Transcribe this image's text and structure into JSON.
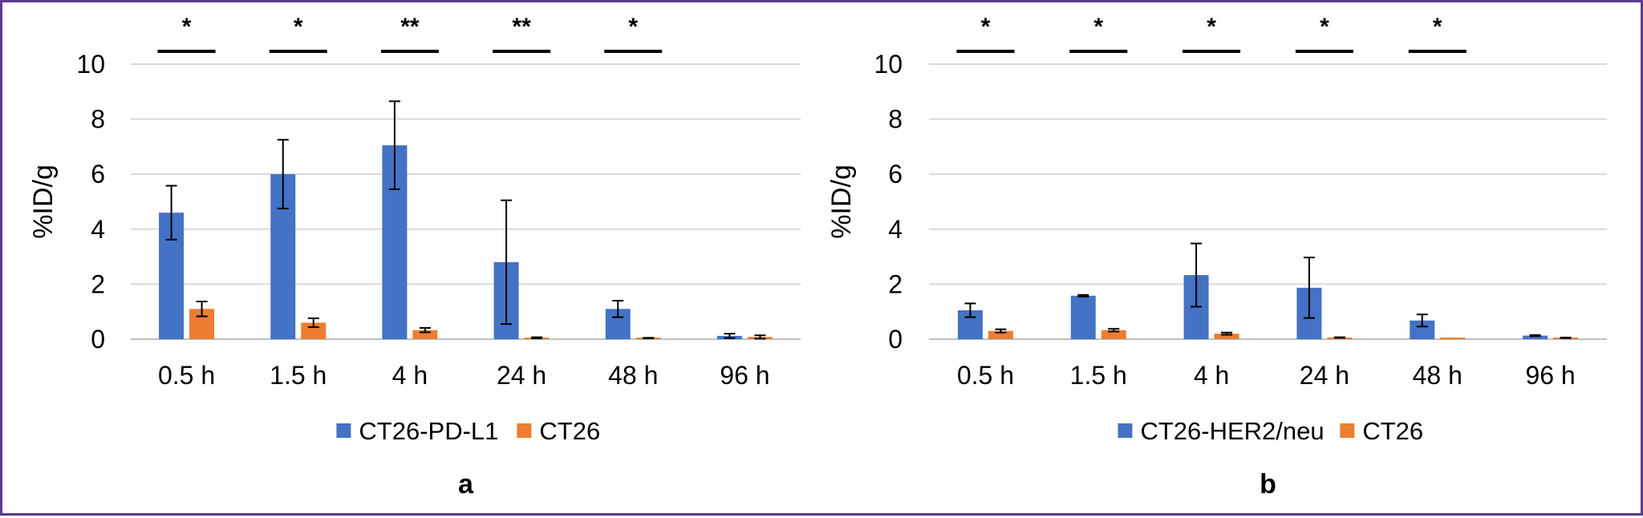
{
  "colors": {
    "series1": "#4472c4",
    "series2": "#ed7d31",
    "grid": "#d9d9d9",
    "axis": "#bfbfbf",
    "error_bar": "#000000",
    "frame": "#5b3a8c"
  },
  "chart_data": [
    {
      "type": "bar",
      "panel_label": "a",
      "categories": [
        "0.5 h",
        "1.5 h",
        "4 h",
        "24 h",
        "48 h",
        "96 h"
      ],
      "ylabel": "%ID/g",
      "xlabel": "",
      "ylim": [
        0,
        10
      ],
      "yticks": [
        0,
        2,
        4,
        6,
        8,
        10
      ],
      "grid": true,
      "legend_position": "bottom",
      "series": [
        {
          "name": "CT26-PD-L1",
          "values": [
            4.6,
            6.0,
            7.05,
            2.8,
            1.1,
            0.12
          ],
          "errors": [
            0.98,
            1.25,
            1.6,
            2.25,
            0.3,
            0.08
          ]
        },
        {
          "name": "CT26",
          "values": [
            1.1,
            0.6,
            0.33,
            0.05,
            0.04,
            0.08
          ],
          "errors": [
            0.27,
            0.16,
            0.08,
            0.02,
            0.01,
            0.06
          ]
        }
      ],
      "significance": [
        "*",
        "*",
        "**",
        "**",
        "*",
        ""
      ]
    },
    {
      "type": "bar",
      "panel_label": "b",
      "categories": [
        "0.5 h",
        "1.5 h",
        "4 h",
        "24 h",
        "48 h",
        "96 h"
      ],
      "ylabel": "%ID/g",
      "xlabel": "",
      "ylim": [
        0,
        10
      ],
      "yticks": [
        0,
        2,
        4,
        6,
        8,
        10
      ],
      "grid": true,
      "legend_position": "bottom",
      "series": [
        {
          "name": "CT26-HER2/neu",
          "values": [
            1.05,
            1.58,
            2.33,
            1.87,
            0.68,
            0.13
          ],
          "errors": [
            0.25,
            0.03,
            1.15,
            1.1,
            0.22,
            0.02
          ]
        },
        {
          "name": "CT26",
          "values": [
            0.3,
            0.33,
            0.2,
            0.06,
            0.02,
            0.05
          ],
          "errors": [
            0.06,
            0.05,
            0.04,
            0.01,
            0.0,
            0.01
          ]
        }
      ],
      "significance": [
        "*",
        "*",
        "*",
        "*",
        "*",
        ""
      ]
    }
  ]
}
